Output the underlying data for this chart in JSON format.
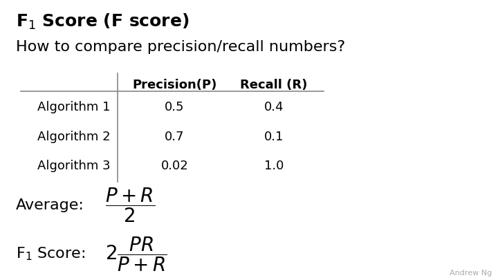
{
  "title_main": "F$_1$ Score (F score)",
  "subtitle": "How to compare precision/recall numbers?",
  "col_headers": [
    "",
    "Precision(P)",
    "Recall (R)"
  ],
  "rows": [
    [
      "Algorithm 1",
      "0.5",
      "0.4"
    ],
    [
      "Algorithm 2",
      "0.7",
      "0.1"
    ],
    [
      "Algorithm 3",
      "0.02",
      "1.0"
    ]
  ],
  "average_label": "Average:",
  "average_formula": "$\\dfrac{P+R}{2}$",
  "f1_label": "F$_1$ Score:",
  "f1_formula": "$2\\dfrac{PR}{P+R}$",
  "watermark": "Andrew Ng",
  "bg_color": "#ffffff",
  "text_color": "#000000",
  "line_color": "#888888",
  "title_fontsize": 18,
  "subtitle_fontsize": 16,
  "table_fontsize": 13,
  "formula_fontsize": 17
}
